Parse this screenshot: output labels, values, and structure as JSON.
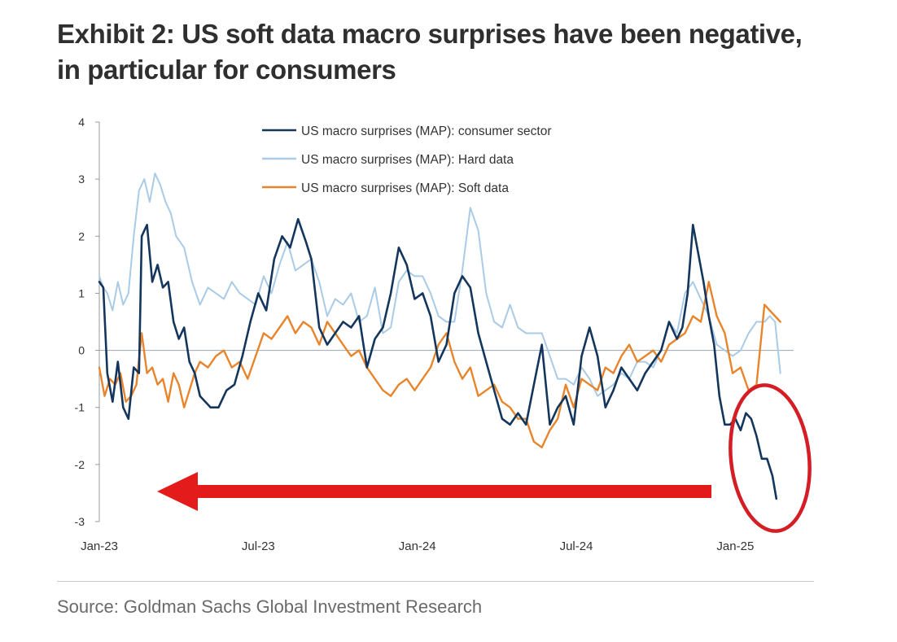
{
  "title_line1": "Exhibit 2: US soft data macro surprises have been negative,",
  "title_line2": "in particular for consumers",
  "source": "Source: Goldman Sachs Global Investment Research",
  "colors": {
    "consumer": "#14365d",
    "hard": "#a9cbe6",
    "soft": "#e8852c",
    "arrow": "#e31b1b",
    "circle": "#d41d24",
    "axis": "#9a9a9a",
    "text": "#333333"
  },
  "chart_data": {
    "type": "line",
    "title": "Exhibit 2: US soft data macro surprises have been negative, in particular for consumers",
    "xlabel": "",
    "ylabel": "",
    "ylim": [
      -3,
      4
    ],
    "xlim": [
      0,
      26.2
    ],
    "x_unit": "months since Jan-2023",
    "y_ticks": [
      4,
      3,
      2,
      1,
      0,
      -1,
      -2,
      -3
    ],
    "x_tick_labels": [
      "Jan-23",
      "Jul-23",
      "Jan-24",
      "Jul-24",
      "Jan-25"
    ],
    "x_tick_positions": [
      0,
      6,
      12,
      18,
      24
    ],
    "legend": [
      "US macro surprises (MAP): consumer sector",
      "US macro surprises (MAP): Hard data",
      "US macro surprises (MAP): Soft data"
    ],
    "legend_position": "top-center",
    "series": [
      {
        "name": "US macro surprises (MAP): consumer sector",
        "x": [
          0,
          0.15,
          0.3,
          0.5,
          0.7,
          0.9,
          1.1,
          1.3,
          1.5,
          1.6,
          1.8,
          2.0,
          2.2,
          2.4,
          2.6,
          2.8,
          3.0,
          3.2,
          3.4,
          3.6,
          3.8,
          4.0,
          4.2,
          4.5,
          4.8,
          5.1,
          5.4,
          5.7,
          6.0,
          6.3,
          6.6,
          6.9,
          7.2,
          7.5,
          7.8,
          8.0,
          8.3,
          8.6,
          8.9,
          9.2,
          9.5,
          9.8,
          10.1,
          10.4,
          10.7,
          11.0,
          11.3,
          11.6,
          11.9,
          12.2,
          12.5,
          12.8,
          13.1,
          13.4,
          13.7,
          14.0,
          14.3,
          14.6,
          14.9,
          15.2,
          15.5,
          15.8,
          16.1,
          16.4,
          16.7,
          17.0,
          17.3,
          17.6,
          17.9,
          18.2,
          18.5,
          18.8,
          19.1,
          19.4,
          19.7,
          20.0,
          20.3,
          20.6,
          20.9,
          21.2,
          21.5,
          21.8,
          22.0,
          22.2,
          22.4,
          22.6,
          22.8,
          23.0,
          23.2,
          23.4,
          23.6,
          23.8,
          24.0,
          24.2,
          24.4,
          24.6,
          24.8,
          25.0,
          25.2,
          25.4,
          25.55
        ],
        "values": [
          1.2,
          1.1,
          -0.4,
          -0.9,
          -0.2,
          -1.0,
          -1.2,
          -0.3,
          -0.4,
          2.0,
          2.2,
          1.2,
          1.5,
          1.1,
          1.2,
          0.5,
          0.2,
          0.4,
          -0.2,
          -0.4,
          -0.8,
          -0.9,
          -1.0,
          -1.0,
          -0.7,
          -0.6,
          -0.1,
          0.5,
          1.0,
          0.7,
          1.6,
          2.0,
          1.8,
          2.3,
          1.9,
          1.6,
          0.4,
          0.1,
          0.3,
          0.5,
          0.4,
          0.6,
          -0.3,
          0.2,
          0.4,
          1.0,
          1.8,
          1.5,
          0.9,
          1.0,
          0.6,
          -0.2,
          0.1,
          1.0,
          1.3,
          1.1,
          0.3,
          -0.2,
          -0.7,
          -1.2,
          -1.3,
          -1.1,
          -1.3,
          -0.6,
          0.1,
          -1.3,
          -1.0,
          -0.8,
          -1.3,
          -0.1,
          0.4,
          -0.1,
          -1.0,
          -0.7,
          -0.3,
          -0.5,
          -0.7,
          -0.4,
          -0.2,
          0.0,
          0.5,
          0.2,
          0.4,
          1.0,
          2.2,
          1.7,
          1.2,
          0.6,
          0.1,
          -0.8,
          -1.3,
          -1.3,
          -1.2,
          -1.4,
          -1.1,
          -1.2,
          -1.5,
          -1.9,
          -1.9,
          -2.2,
          -2.6
        ]
      },
      {
        "name": "US macro surprises (MAP): Hard data",
        "x": [
          0,
          0.15,
          0.3,
          0.5,
          0.7,
          0.9,
          1.1,
          1.3,
          1.5,
          1.7,
          1.9,
          2.1,
          2.3,
          2.5,
          2.7,
          2.9,
          3.2,
          3.5,
          3.8,
          4.1,
          4.4,
          4.7,
          5.0,
          5.3,
          5.6,
          5.9,
          6.2,
          6.5,
          6.8,
          7.1,
          7.4,
          7.7,
          8.0,
          8.3,
          8.6,
          8.9,
          9.2,
          9.5,
          9.8,
          10.1,
          10.4,
          10.7,
          11.0,
          11.3,
          11.6,
          11.9,
          12.2,
          12.5,
          12.8,
          13.1,
          13.4,
          13.7,
          14.0,
          14.3,
          14.6,
          14.9,
          15.2,
          15.5,
          15.8,
          16.1,
          16.4,
          16.7,
          17.0,
          17.3,
          17.6,
          17.9,
          18.2,
          18.5,
          18.8,
          19.1,
          19.4,
          19.7,
          20.0,
          20.3,
          20.6,
          20.9,
          21.2,
          21.5,
          21.8,
          22.1,
          22.4,
          22.7,
          23.0,
          23.3,
          23.6,
          23.9,
          24.2,
          24.5,
          24.8,
          25.1,
          25.3,
          25.5,
          25.7
        ],
        "values": [
          1.3,
          1.1,
          1.0,
          0.7,
          1.2,
          0.8,
          1.0,
          2.0,
          2.8,
          3.0,
          2.6,
          3.1,
          2.9,
          2.6,
          2.4,
          2.0,
          1.8,
          1.2,
          0.8,
          1.1,
          1.0,
          0.9,
          1.2,
          1.0,
          0.9,
          0.8,
          1.3,
          1.0,
          1.5,
          1.9,
          1.4,
          1.5,
          1.6,
          1.2,
          0.6,
          0.9,
          0.8,
          1.0,
          0.5,
          0.6,
          1.1,
          0.3,
          0.4,
          1.2,
          1.4,
          1.3,
          1.3,
          1.0,
          0.6,
          0.5,
          0.5,
          1.4,
          2.5,
          2.1,
          1.0,
          0.5,
          0.4,
          0.8,
          0.4,
          0.3,
          0.3,
          0.3,
          -0.1,
          -0.5,
          -0.5,
          -0.6,
          -0.3,
          -0.5,
          -0.8,
          -0.7,
          -0.6,
          -0.4,
          -0.5,
          -0.2,
          -0.2,
          -0.3,
          0.0,
          0.5,
          0.3,
          1.0,
          1.2,
          0.9,
          0.6,
          0.1,
          0.0,
          -0.1,
          0.0,
          0.3,
          0.5,
          0.5,
          0.6,
          0.5,
          -0.4
        ]
      },
      {
        "name": "US macro surprises (MAP): Soft data",
        "x": [
          0,
          0.2,
          0.4,
          0.6,
          0.8,
          1.0,
          1.2,
          1.4,
          1.6,
          1.8,
          2.0,
          2.2,
          2.4,
          2.6,
          2.8,
          3.0,
          3.2,
          3.4,
          3.6,
          3.8,
          4.1,
          4.4,
          4.7,
          5.0,
          5.3,
          5.6,
          5.9,
          6.2,
          6.5,
          6.8,
          7.1,
          7.4,
          7.7,
          8.0,
          8.3,
          8.6,
          8.9,
          9.2,
          9.5,
          9.8,
          10.1,
          10.4,
          10.7,
          11.0,
          11.3,
          11.6,
          11.9,
          12.2,
          12.5,
          12.8,
          13.1,
          13.4,
          13.7,
          14.0,
          14.3,
          14.6,
          14.9,
          15.2,
          15.5,
          15.8,
          16.1,
          16.4,
          16.7,
          17.0,
          17.3,
          17.6,
          17.9,
          18.2,
          18.5,
          18.8,
          19.1,
          19.4,
          19.7,
          20.0,
          20.3,
          20.6,
          20.9,
          21.2,
          21.5,
          21.8,
          22.1,
          22.4,
          22.7,
          23.0,
          23.3,
          23.6,
          23.9,
          24.2,
          24.5,
          24.8,
          25.1,
          25.3,
          25.5,
          25.7
        ],
        "values": [
          -0.3,
          -0.8,
          -0.5,
          -0.6,
          -0.4,
          -0.9,
          -0.8,
          -0.6,
          0.3,
          -0.4,
          -0.3,
          -0.6,
          -0.5,
          -0.9,
          -0.4,
          -0.6,
          -1.0,
          -0.7,
          -0.4,
          -0.2,
          -0.3,
          -0.1,
          0.0,
          -0.3,
          -0.2,
          -0.5,
          -0.1,
          0.3,
          0.2,
          0.4,
          0.6,
          0.3,
          0.5,
          0.4,
          0.1,
          0.5,
          0.3,
          0.1,
          -0.1,
          0.0,
          -0.3,
          -0.5,
          -0.7,
          -0.8,
          -0.6,
          -0.5,
          -0.7,
          -0.5,
          -0.3,
          0.1,
          0.3,
          -0.2,
          -0.5,
          -0.3,
          -0.8,
          -0.7,
          -0.6,
          -0.9,
          -1.0,
          -1.2,
          -1.2,
          -1.6,
          -1.7,
          -1.4,
          -1.2,
          -0.6,
          -1.0,
          -0.5,
          -0.6,
          -0.7,
          -0.3,
          -0.4,
          -0.1,
          0.1,
          -0.2,
          -0.1,
          0.0,
          -0.2,
          0.1,
          0.2,
          0.3,
          0.6,
          0.5,
          1.2,
          0.6,
          0.3,
          -0.4,
          -0.3,
          -0.7,
          -0.6,
          0.8,
          0.7,
          0.6,
          0.5
        ]
      }
    ]
  }
}
